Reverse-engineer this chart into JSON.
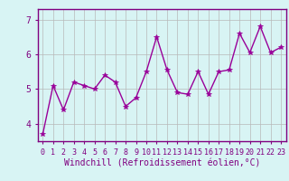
{
  "x": [
    0,
    1,
    2,
    3,
    4,
    5,
    6,
    7,
    8,
    9,
    10,
    11,
    12,
    13,
    14,
    15,
    16,
    17,
    18,
    19,
    20,
    21,
    22,
    23
  ],
  "y": [
    3.7,
    5.1,
    4.4,
    5.2,
    5.1,
    5.0,
    5.4,
    5.2,
    4.5,
    4.75,
    5.5,
    6.5,
    5.55,
    4.9,
    4.85,
    5.5,
    4.85,
    5.5,
    5.55,
    6.6,
    6.05,
    6.8,
    6.05,
    6.2
  ],
  "line_color": "#990099",
  "marker": "*",
  "marker_size": 4,
  "bg_color": "#d8f4f4",
  "grid_color": "#b8b8b8",
  "xlabel": "Windchill (Refroidissement éolien,°C)",
  "ylim": [
    3.5,
    7.3
  ],
  "xlim": [
    -0.5,
    23.5
  ],
  "yticks": [
    4,
    5,
    6,
    7
  ],
  "xticks": [
    0,
    1,
    2,
    3,
    4,
    5,
    6,
    7,
    8,
    9,
    10,
    11,
    12,
    13,
    14,
    15,
    16,
    17,
    18,
    19,
    20,
    21,
    22,
    23
  ],
  "tick_color": "#800080",
  "axis_color": "#800080",
  "xlabel_fontsize": 7,
  "tick_fontsize": 6,
  "ytick_fontsize": 7,
  "linewidth": 1.0
}
